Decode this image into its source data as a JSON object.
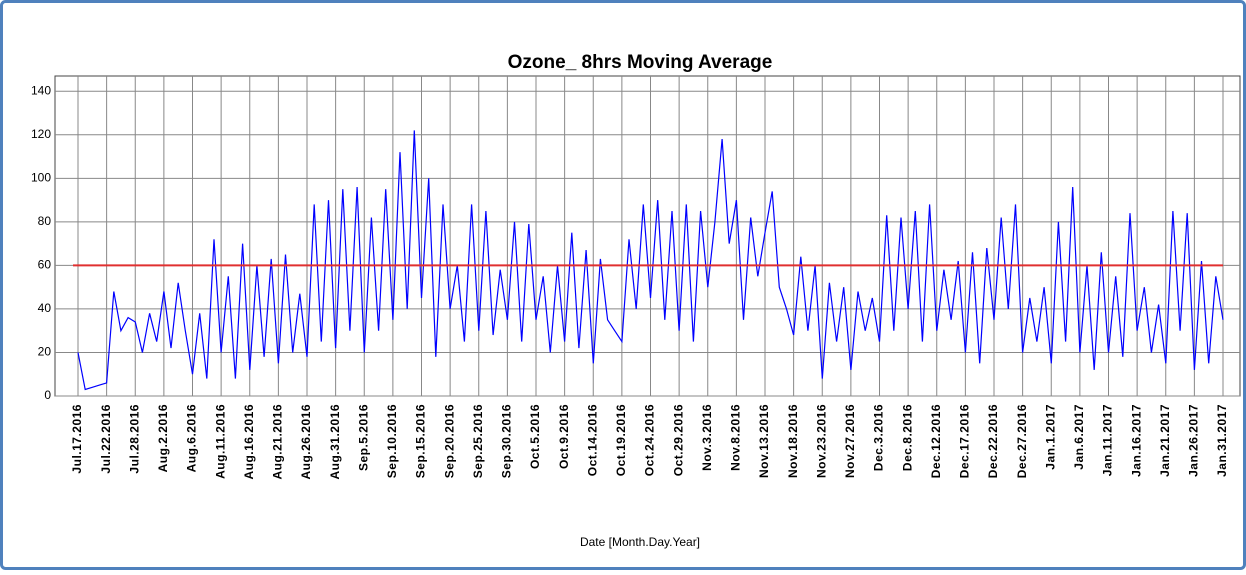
{
  "chart_data": {
    "type": "line",
    "title": "Ozone_ 8hrs  Moving Average",
    "x_label": "Date [Month.Day.Year]",
    "categories": [
      "Jul.17.2016",
      null,
      null,
      null,
      "Jul.22.2016",
      null,
      null,
      null,
      "Jul.28.2016",
      null,
      null,
      null,
      "Aug.2.2016",
      null,
      null,
      null,
      "Aug.6.2016",
      null,
      null,
      null,
      "Aug.11.2016",
      null,
      null,
      null,
      "Aug.16.2016",
      null,
      null,
      null,
      "Aug.21.2016",
      null,
      null,
      null,
      "Aug.26.2016",
      null,
      null,
      null,
      "Aug.31.2016",
      null,
      null,
      null,
      "Sep.5.2016",
      null,
      null,
      null,
      "Sep.10.2016",
      null,
      null,
      null,
      "Sep.15.2016",
      null,
      null,
      null,
      "Sep.20.2016",
      null,
      null,
      null,
      "Sep.25.2016",
      null,
      null,
      null,
      "Sep.30.2016",
      null,
      null,
      null,
      "Oct.5.2016",
      null,
      null,
      null,
      "Oct.9.2016",
      null,
      null,
      null,
      "Oct.14.2016",
      null,
      null,
      null,
      "Oct.19.2016",
      null,
      null,
      null,
      "Oct.24.2016",
      null,
      null,
      null,
      "Oct.29.2016",
      null,
      null,
      null,
      "Nov.3.2016",
      null,
      null,
      null,
      "Nov.8.2016",
      null,
      null,
      null,
      "Nov.13.2016",
      null,
      null,
      null,
      "Nov.18.2016",
      null,
      null,
      null,
      "Nov.23.2016",
      null,
      null,
      null,
      "Nov.27.2016",
      null,
      null,
      null,
      "Dec.3.2016",
      null,
      null,
      null,
      "Dec.8.2016",
      null,
      null,
      null,
      "Dec.12.2016",
      null,
      null,
      null,
      "Dec.17.2016",
      null,
      null,
      null,
      "Dec.22.2016",
      null,
      null,
      null,
      "Dec.27.2016",
      null,
      null,
      null,
      "Jan.1.2017",
      null,
      null,
      null,
      "Jan.6.2017",
      null,
      null,
      null,
      "Jan.11.2017",
      null,
      null,
      null,
      "Jan.16.2017",
      null,
      null,
      null,
      "Jan.21.2017",
      null,
      null,
      null,
      "Jan.26.2017",
      null,
      null,
      null,
      "Jan.31.2017"
    ],
    "series": [
      {
        "color": "#0000ff",
        "values": [
          20,
          3,
          4,
          5,
          6,
          48,
          30,
          36,
          34,
          20,
          38,
          25,
          48,
          22,
          52,
          30,
          10,
          38,
          8,
          72,
          20,
          55,
          8,
          70,
          12,
          60,
          18,
          63,
          15,
          65,
          20,
          47,
          18,
          88,
          25,
          90,
          22,
          95,
          30,
          96,
          20,
          82,
          30,
          95,
          35,
          112,
          40,
          122,
          45,
          100,
          18,
          88,
          40,
          60,
          25,
          88,
          30,
          85,
          28,
          58,
          35,
          80,
          25,
          79,
          35,
          55,
          20,
          60,
          25,
          75,
          22,
          67,
          15,
          63,
          35,
          30,
          25,
          72,
          40,
          88,
          45,
          90,
          35,
          85,
          30,
          88,
          25,
          85,
          50,
          80,
          118,
          70,
          90,
          35,
          82,
          55,
          75,
          94,
          50,
          40,
          28,
          64,
          30,
          60,
          8,
          52,
          25,
          50,
          12,
          48,
          30,
          45,
          25,
          83,
          30,
          82,
          40,
          85,
          25,
          88,
          30,
          58,
          35,
          62,
          20,
          66,
          15,
          68,
          35,
          82,
          40,
          88,
          20,
          45,
          25,
          50,
          15,
          80,
          25,
          96,
          20,
          60,
          12,
          66,
          20,
          55,
          18,
          84,
          30,
          50,
          20,
          42,
          15,
          85,
          30,
          84,
          12,
          62,
          15,
          55,
          35
        ]
      }
    ],
    "hline": {
      "value": 60,
      "color": "#e03030"
    },
    "ylim": [
      0,
      147
    ],
    "yticks": [
      0,
      20,
      40,
      60,
      80,
      100,
      120,
      140
    ],
    "grid": true
  }
}
